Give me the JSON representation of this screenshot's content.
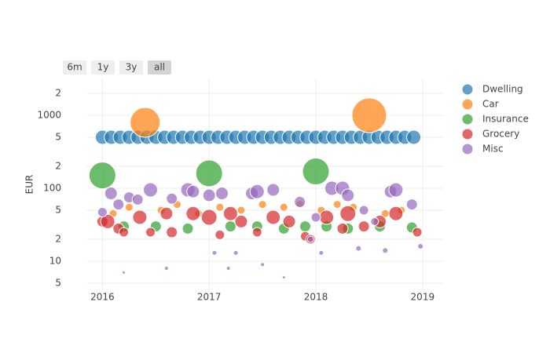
{
  "range_buttons": [
    "6m",
    "1y",
    "3y",
    "all"
  ],
  "chart_data": {
    "type": "scatter",
    "y_label": "EUR",
    "log_y": true,
    "grid": true,
    "legend_position": "right",
    "xlim": [
      2015.85,
      2019.2
    ],
    "xticks": [
      2016,
      2017,
      2018,
      2019
    ],
    "ylim": [
      4,
      3200
    ],
    "yticks": [
      5,
      10,
      {
        "value": 20,
        "label": "2"
      },
      {
        "value": 50,
        "label": "5"
      },
      100,
      {
        "value": 200,
        "label": "2"
      },
      {
        "value": 500,
        "label": "5"
      },
      1000,
      {
        "value": 2000,
        "label": "2"
      }
    ],
    "series": [
      {
        "name": "Dwelling",
        "color": "#1f77b4",
        "x": [
          2016.0,
          2016.083,
          2016.167,
          2016.25,
          2016.333,
          2016.417,
          2016.5,
          2016.583,
          2016.667,
          2016.75,
          2016.833,
          2016.917,
          2017.0,
          2017.083,
          2017.167,
          2017.25,
          2017.333,
          2017.417,
          2017.5,
          2017.583,
          2017.667,
          2017.75,
          2017.833,
          2017.917,
          2018.0,
          2018.083,
          2018.167,
          2018.25,
          2018.333,
          2018.417,
          2018.5,
          2018.583,
          2018.667,
          2018.75,
          2018.833,
          2018.917
        ],
        "values": [
          500,
          500,
          500,
          500,
          500,
          500,
          500,
          500,
          500,
          500,
          500,
          500,
          500,
          500,
          500,
          500,
          500,
          500,
          500,
          500,
          500,
          500,
          500,
          500,
          500,
          500,
          500,
          500,
          500,
          500,
          500,
          500,
          500,
          500,
          500,
          500
        ],
        "sizes": [
          18,
          18,
          18,
          18,
          18,
          18,
          18,
          18,
          18,
          18,
          18,
          18,
          18,
          18,
          18,
          18,
          18,
          18,
          18,
          18,
          18,
          18,
          18,
          18,
          18,
          18,
          18,
          18,
          18,
          18,
          18,
          18,
          18,
          18,
          18,
          18
        ]
      },
      {
        "name": "Car",
        "color": "#ff7f0e",
        "x": [
          2016.1,
          2016.25,
          2016.4,
          2016.55,
          2016.7,
          2016.9,
          2017.1,
          2017.3,
          2017.5,
          2017.7,
          2017.85,
          2018.05,
          2018.2,
          2018.35,
          2018.5,
          2018.65,
          2018.8
        ],
        "values": [
          45,
          55,
          800,
          50,
          60,
          45,
          55,
          50,
          60,
          55,
          60,
          50,
          60,
          55,
          1000,
          45,
          50
        ],
        "sizes": [
          10,
          10,
          38,
          10,
          10,
          10,
          10,
          10,
          10,
          10,
          10,
          10,
          10,
          10,
          44,
          10,
          10
        ]
      },
      {
        "name": "Insurance",
        "color": "#2ca02c",
        "x": [
          2016.0,
          2016.2,
          2016.5,
          2016.8,
          2017.0,
          2017.2,
          2017.45,
          2017.7,
          2017.9,
          2018.0,
          2018.1,
          2018.3,
          2018.6,
          2018.9
        ],
        "values": [
          150,
          30,
          30,
          28,
          160,
          30,
          30,
          28,
          30,
          170,
          30,
          28,
          30,
          29
        ],
        "sizes": [
          34,
          14,
          14,
          14,
          34,
          14,
          14,
          14,
          14,
          34,
          14,
          14,
          14,
          14
        ]
      },
      {
        "name": "Grocery",
        "color": "#d62728",
        "x": [
          2016.0,
          2016.05,
          2016.15,
          2016.2,
          2016.35,
          2016.45,
          2016.6,
          2016.65,
          2016.85,
          2017.0,
          2017.1,
          2017.2,
          2017.3,
          2017.45,
          2017.6,
          2017.75,
          2017.9,
          2017.95,
          2018.1,
          2018.25,
          2018.3,
          2018.45,
          2018.6,
          2018.75,
          2018.95
        ],
        "values": [
          35,
          35,
          28,
          25,
          40,
          25,
          45,
          25,
          45,
          40,
          23,
          45,
          35,
          25,
          40,
          35,
          22,
          20,
          40,
          28,
          45,
          30,
          35,
          45,
          25
        ],
        "sizes": [
          14,
          18,
          14,
          12,
          18,
          12,
          16,
          14,
          18,
          20,
          12,
          18,
          16,
          12,
          18,
          16,
          12,
          12,
          18,
          14,
          20,
          14,
          16,
          18,
          12
        ]
      },
      {
        "name": "Misc",
        "color": "#9467bd",
        "x": [
          2016.0,
          2016.08,
          2016.15,
          2016.2,
          2016.25,
          2016.33,
          2016.45,
          2016.6,
          2016.65,
          2016.8,
          2016.85,
          2017.0,
          2017.05,
          2017.12,
          2017.18,
          2017.25,
          2017.4,
          2017.45,
          2017.5,
          2017.6,
          2017.7,
          2017.85,
          2017.95,
          2018.0,
          2018.05,
          2018.15,
          2018.25,
          2018.3,
          2018.4,
          2018.45,
          2018.55,
          2018.65,
          2018.7,
          2018.75,
          2018.9,
          2018.98
        ],
        "values": [
          47,
          85,
          60,
          7,
          75,
          70,
          95,
          8,
          72,
          95,
          90,
          80,
          13,
          85,
          8,
          13,
          85,
          90,
          9,
          95,
          6,
          65,
          20,
          40,
          13,
          100,
          100,
          80,
          15,
          50,
          35,
          14,
          90,
          95,
          60,
          16
        ],
        "sizes": [
          12,
          16,
          14,
          4,
          14,
          14,
          18,
          5,
          14,
          18,
          16,
          16,
          6,
          16,
          5,
          6,
          16,
          18,
          5,
          16,
          4,
          14,
          8,
          12,
          6,
          18,
          18,
          16,
          7,
          12,
          10,
          7,
          16,
          18,
          14,
          7
        ]
      }
    ]
  }
}
